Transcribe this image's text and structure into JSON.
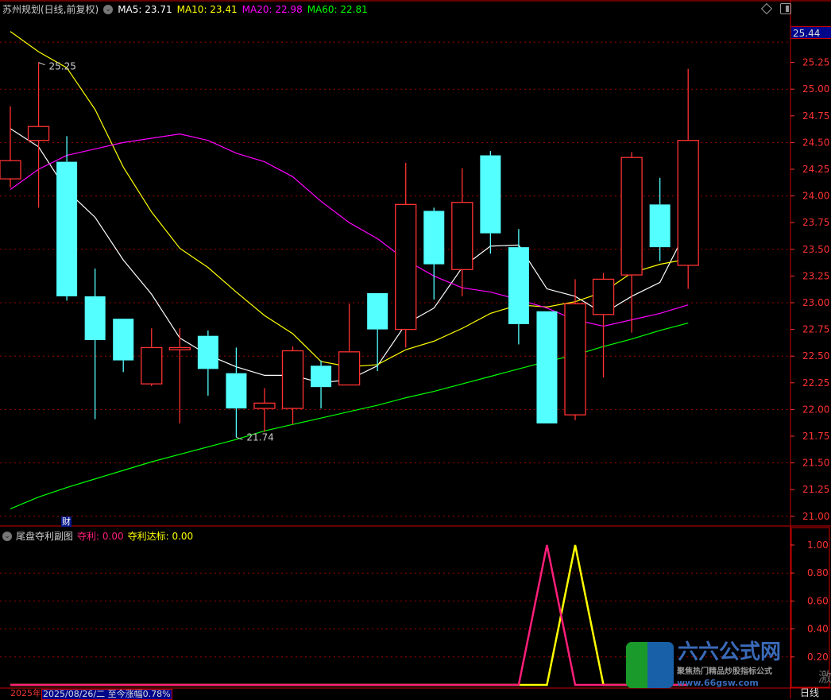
{
  "header": {
    "stock_title": "苏州规划(日线,前复权)",
    "ma5": "MA5: 23.71",
    "ma10": "MA10: 23.41",
    "ma20": "MA20: 22.98",
    "ma60": "MA60: 22.81"
  },
  "colors": {
    "up": "#ff3232",
    "down": "#54ffff",
    "ma5": "#ffffff",
    "ma10": "#ffff00",
    "ma20": "#ff00ff",
    "ma60": "#00ff00",
    "grid": "#a00000",
    "axis": "#ff3232",
    "duoli": "#ff1e78",
    "duoli_dabiao": "#ffff00"
  },
  "current_price_tag": "25.44",
  "finance_marker": "财",
  "sub_panel": {
    "title": "尾盘夺利副图",
    "duoli_label": "夺利: 0.00",
    "dabiao_label": "夺利达标: 0.00"
  },
  "footer": {
    "year": "2025年",
    "date_info": "2025/08/26/二  至今涨幅0.78%",
    "period": "日线",
    "partial_text": "激"
  },
  "logo": {
    "name": "六六公式网",
    "slogan": "聚焦热门精品炒股指标公式",
    "url": "www.66gsw.com"
  },
  "chart_data": [
    {
      "type": "candlestick",
      "ylim": [
        21.0,
        25.44
      ],
      "yticks": [
        "25.25",
        "25.00",
        "24.75",
        "24.50",
        "24.25",
        "24.00",
        "23.75",
        "23.50",
        "23.25",
        "23.00",
        "22.75",
        "22.50",
        "22.25",
        "22.00",
        "21.75",
        "21.50",
        "21.25",
        "21.00"
      ],
      "grid": true,
      "annotations": [
        {
          "label": "25.25",
          "index": 1
        },
        {
          "label": "21.74",
          "index": 8
        }
      ],
      "ohlc": [
        [
          24.16,
          24.84,
          24.08,
          24.33
        ],
        [
          24.52,
          25.25,
          23.89,
          24.65
        ],
        [
          24.32,
          24.56,
          23.02,
          23.06
        ],
        [
          23.06,
          23.32,
          21.91,
          22.65
        ],
        [
          22.85,
          22.85,
          22.35,
          22.46
        ],
        [
          22.24,
          22.76,
          22.22,
          22.58
        ],
        [
          22.56,
          22.76,
          21.87,
          22.58
        ],
        [
          22.69,
          22.74,
          22.13,
          22.38
        ],
        [
          22.34,
          22.58,
          21.74,
          22.01
        ],
        [
          22.01,
          22.2,
          21.79,
          22.06
        ],
        [
          22.01,
          22.59,
          21.86,
          22.55
        ],
        [
          22.41,
          22.46,
          22.01,
          22.21
        ],
        [
          22.23,
          22.99,
          22.23,
          22.54
        ],
        [
          23.09,
          23.09,
          22.36,
          22.75
        ],
        [
          22.75,
          24.31,
          22.58,
          23.92
        ],
        [
          23.86,
          23.89,
          23.03,
          23.36
        ],
        [
          23.31,
          24.26,
          23.06,
          23.94
        ],
        [
          24.38,
          24.42,
          23.46,
          23.65
        ],
        [
          23.52,
          23.69,
          22.61,
          22.8
        ],
        [
          22.92,
          22.92,
          21.87,
          21.87
        ],
        [
          21.95,
          23.22,
          21.9,
          22.99
        ],
        [
          22.89,
          23.28,
          22.3,
          23.22
        ],
        [
          23.26,
          24.41,
          22.72,
          24.36
        ],
        [
          23.92,
          24.17,
          23.39,
          23.52
        ],
        [
          23.35,
          25.19,
          23.13,
          24.52
        ]
      ],
      "series": [
        {
          "name": "MA5",
          "values": [
            24.63,
            24.46,
            24.05,
            23.8,
            23.4,
            23.08,
            22.67,
            22.51,
            22.4,
            22.32,
            22.32,
            22.25,
            22.28,
            22.41,
            22.8,
            22.95,
            23.33,
            23.53,
            23.54,
            23.13,
            23.06,
            22.9,
            23.06,
            23.19,
            23.71
          ]
        },
        {
          "name": "MA10",
          "values": [
            25.54,
            25.35,
            25.2,
            24.81,
            24.27,
            23.85,
            23.51,
            23.33,
            23.1,
            22.88,
            22.71,
            22.45,
            22.4,
            22.42,
            22.56,
            22.64,
            22.76,
            22.9,
            22.98,
            22.96,
            23.01,
            23.1,
            23.28,
            23.36,
            23.41
          ]
        },
        {
          "name": "MA20",
          "values": [
            24.06,
            24.25,
            24.38,
            24.44,
            24.5,
            24.54,
            24.58,
            24.52,
            24.4,
            24.32,
            24.18,
            23.95,
            23.75,
            23.6,
            23.4,
            23.25,
            23.14,
            23.1,
            23.03,
            22.95,
            22.84,
            22.78,
            22.84,
            22.9,
            22.98
          ]
        },
        {
          "name": "MA60",
          "values": [
            21.07,
            21.18,
            21.27,
            21.35,
            21.43,
            21.51,
            21.58,
            21.65,
            21.72,
            21.8,
            21.86,
            21.92,
            21.98,
            22.04,
            22.11,
            22.17,
            22.24,
            22.31,
            22.38,
            22.45,
            22.51,
            22.59,
            22.66,
            22.74,
            22.81
          ]
        }
      ]
    },
    {
      "type": "line",
      "ylim": [
        0,
        1.05
      ],
      "yticks": [
        "1.00",
        "0.80",
        "0.60",
        "0.40",
        "0.20"
      ],
      "series": [
        {
          "name": "夺利",
          "values": [
            0,
            0,
            0,
            0,
            0,
            0,
            0,
            0,
            0,
            0,
            0,
            0,
            0,
            0,
            0,
            0,
            0,
            0,
            0,
            1,
            0,
            0,
            0,
            0,
            0
          ]
        },
        {
          "name": "夺利达标",
          "values": [
            0,
            0,
            0,
            0,
            0,
            0,
            0,
            0,
            0,
            0,
            0,
            0,
            0,
            0,
            0,
            0,
            0,
            0,
            0,
            0,
            1,
            0,
            0,
            0,
            0
          ]
        }
      ]
    }
  ]
}
